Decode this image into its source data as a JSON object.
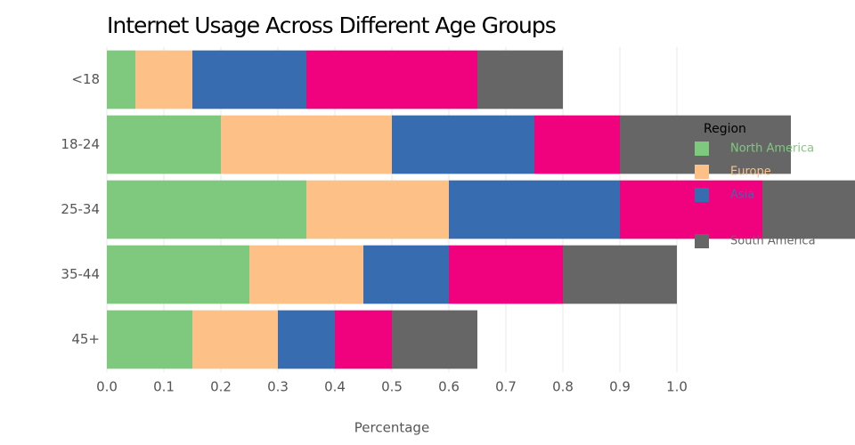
{
  "chart_data": {
    "type": "stacked-bar-horizontal",
    "title": "Internet Usage Across Different Age Groups",
    "x_label": "Percentage",
    "legend_title": "Region",
    "legend_position": "right",
    "categories": [
      "<18",
      "18-24",
      "25-34",
      "35-44",
      "45+"
    ],
    "series": [
      {
        "name": "North America",
        "color": "#7fc97f",
        "values": [
          0.05,
          0.2,
          0.35,
          0.25,
          0.15
        ]
      },
      {
        "name": "Europe",
        "color": "#fdc086",
        "values": [
          0.1,
          0.3,
          0.25,
          0.2,
          0.15
        ]
      },
      {
        "name": "Asia",
        "color": "#386cb0",
        "values": [
          0.2,
          0.25,
          0.3,
          0.15,
          0.1
        ]
      },
      {
        "color": "#f0027f",
        "values": [
          0.3,
          0.15,
          0.25,
          0.2,
          0.1
        ]
      },
      {
        "name": "South America",
        "color": "#666666",
        "values": [
          0.15,
          0.3,
          0.2,
          0.2,
          0.15
        ]
      }
    ],
    "xlim": [
      0,
      1.3125
    ],
    "xticks": [
      {
        "value": 0,
        "label": "0.0"
      },
      0.1,
      0.2,
      0.3,
      0.4,
      0.5,
      0.6,
      0.7,
      0.8,
      0.9,
      {
        "value": 1,
        "label": "1.0"
      }
    ],
    "grid": true
  }
}
